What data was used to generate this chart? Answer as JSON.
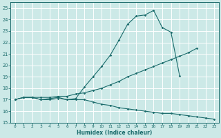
{
  "xlabel": "Humidex (Indice chaleur)",
  "ylabel": "",
  "bg_color": "#cce9e7",
  "grid_color": "#ffffff",
  "line_color": "#1a6b6b",
  "xlim": [
    -0.5,
    23.5
  ],
  "ylim": [
    15,
    25.5
  ],
  "xticks": [
    0,
    1,
    2,
    3,
    4,
    5,
    6,
    7,
    8,
    9,
    10,
    11,
    12,
    13,
    14,
    15,
    16,
    17,
    18,
    19,
    20,
    21,
    22,
    23
  ],
  "yticks": [
    15,
    16,
    17,
    18,
    19,
    20,
    21,
    22,
    23,
    24,
    25
  ],
  "curve1_x": [
    0,
    1,
    2,
    3,
    4,
    5,
    6,
    7,
    8,
    9,
    10,
    11,
    12,
    13,
    14,
    15,
    16,
    17,
    18,
    19
  ],
  "curve1_y": [
    17.0,
    17.2,
    17.2,
    17.0,
    17.1,
    17.2,
    17.0,
    17.1,
    18.1,
    19.0,
    19.9,
    20.9,
    22.2,
    23.6,
    24.3,
    24.4,
    24.8,
    23.3,
    22.9,
    19.1
  ],
  "curve2_x": [
    0,
    1,
    2,
    3,
    4,
    5,
    6,
    7,
    8,
    9,
    10,
    11,
    12,
    13,
    14,
    15,
    16,
    17,
    18,
    19,
    20,
    21
  ],
  "curve2_y": [
    17.0,
    17.2,
    17.2,
    17.2,
    17.2,
    17.3,
    17.3,
    17.5,
    17.6,
    17.8,
    18.0,
    18.3,
    18.6,
    19.0,
    19.3,
    19.6,
    19.9,
    20.2,
    20.5,
    20.8,
    21.1,
    21.5
  ],
  "curve3_x": [
    0,
    1,
    2,
    3,
    4,
    5,
    6,
    7,
    8,
    9,
    10,
    11,
    12,
    13,
    14,
    15,
    16,
    17,
    18,
    19,
    20,
    21,
    22,
    23
  ],
  "curve3_y": [
    17.0,
    17.2,
    17.2,
    17.0,
    17.0,
    17.1,
    17.0,
    17.0,
    17.0,
    16.8,
    16.6,
    16.5,
    16.3,
    16.2,
    16.1,
    16.0,
    15.9,
    15.8,
    15.8,
    15.7,
    15.6,
    15.5,
    15.4,
    15.3
  ]
}
